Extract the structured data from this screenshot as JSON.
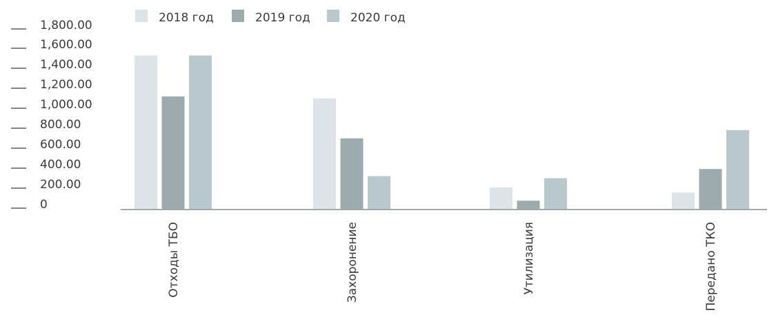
{
  "chart_data": {
    "type": "bar",
    "categories": [
      "Отходы ТБО",
      "Захоронение",
      "Утилизация",
      "Передано ТКО"
    ],
    "series": [
      {
        "name": "2018 год",
        "color": "#dde4e7",
        "values": [
          1500,
          1080,
          210,
          160
        ]
      },
      {
        "name": "2019 год",
        "color": "#9eabae",
        "values": [
          1100,
          690,
          80,
          390
        ]
      },
      {
        "name": "2020 год",
        "color": "#b8c8cd",
        "values": [
          1500,
          320,
          300,
          770
        ]
      }
    ],
    "y_ticks": [
      "0",
      "200.00",
      "400.00",
      "600.00",
      "800.00",
      "1,000.00",
      "1,200.00",
      "1,400.00",
      "1,600.00",
      "1,800.00"
    ],
    "ylim": [
      0,
      1800
    ],
    "legend_position": "top",
    "grid": false,
    "axis_color": "#9ea8ab"
  }
}
